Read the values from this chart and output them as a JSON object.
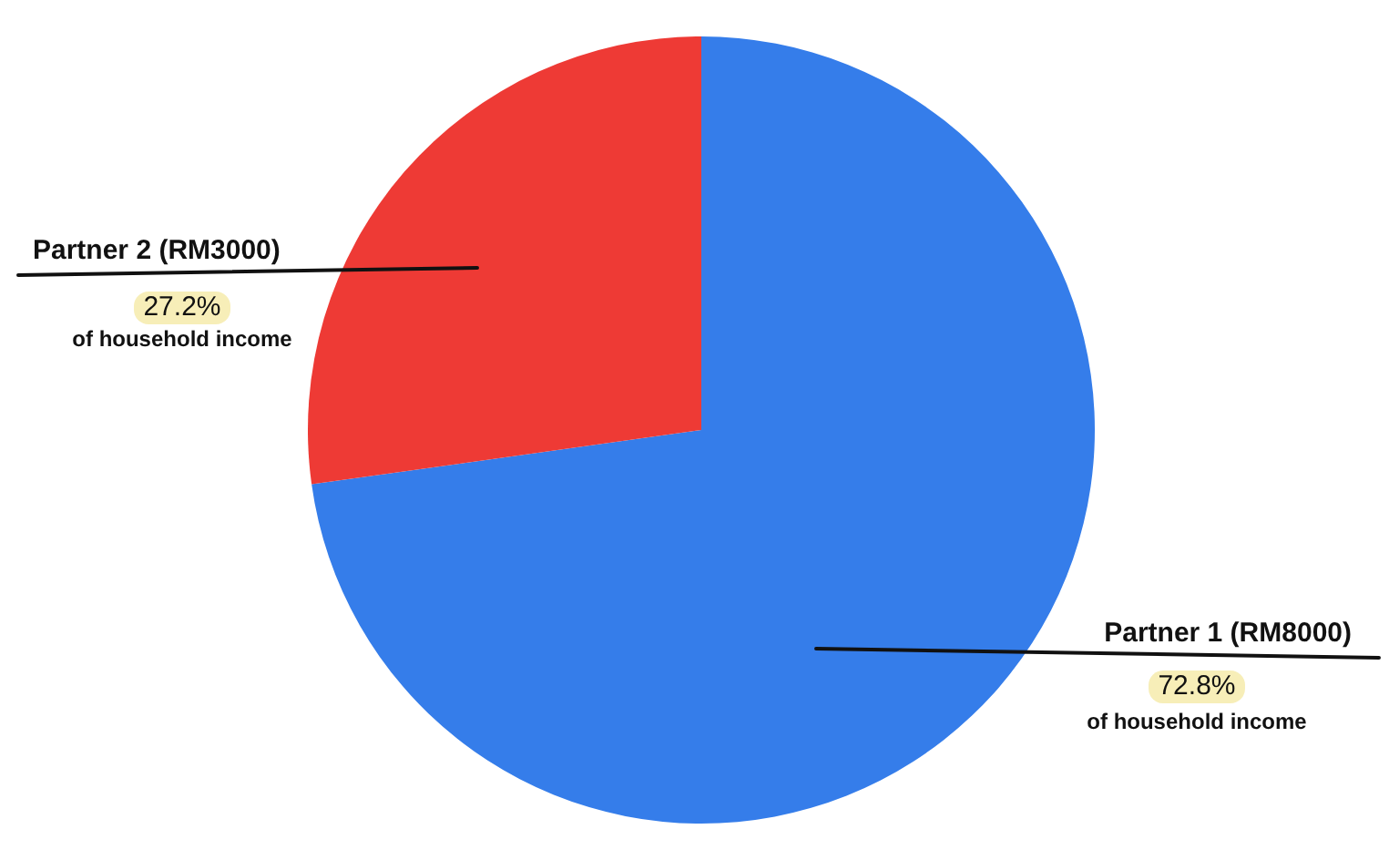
{
  "chart_data": {
    "type": "pie",
    "categories": [
      "Partner 1 (RM8000)",
      "Partner 2 (RM3000)"
    ],
    "values": [
      72.8,
      27.2
    ],
    "colors": [
      "#357dea",
      "#ee3a35"
    ],
    "value_labels": [
      "72.8%",
      "27.2%"
    ],
    "annotations": [
      "of household income",
      "of household income"
    ]
  }
}
